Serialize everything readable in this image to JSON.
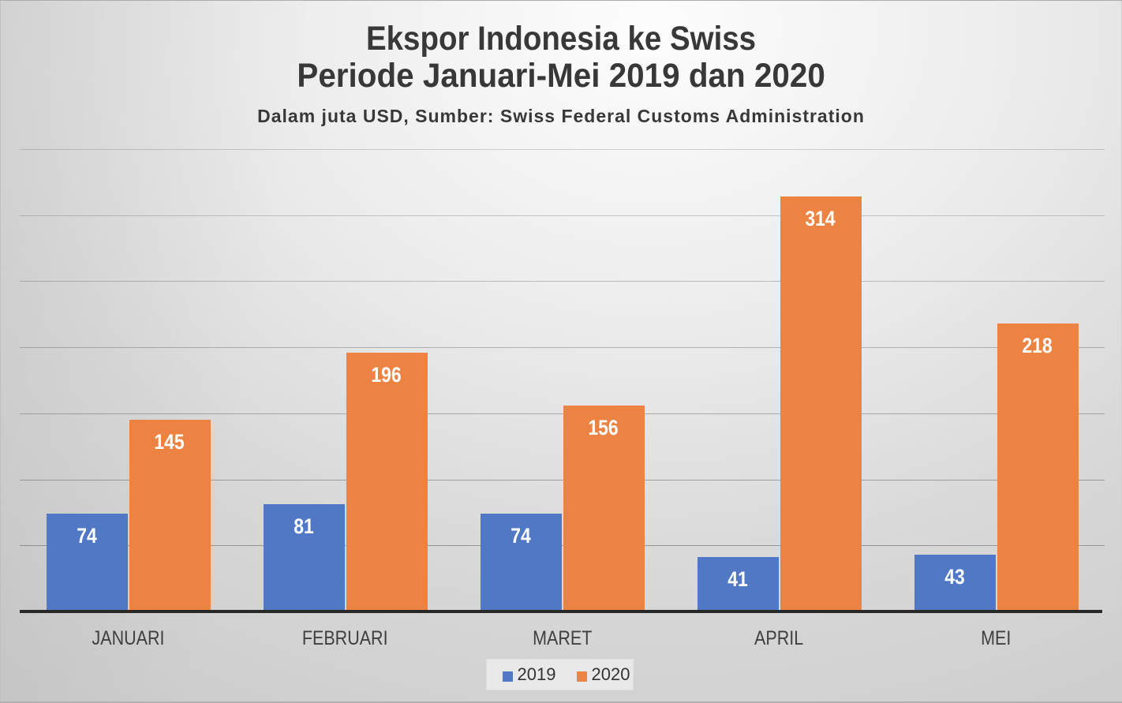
{
  "title": {
    "line1": "Ekspor Indonesia ke Swiss",
    "line2": "Periode Januari-Mei 2019 dan 2020",
    "subtitle": "Dalam juta USD, Sumber: Swiss Federal Customs Administration"
  },
  "chart_data": {
    "type": "bar",
    "title": "Ekspor Indonesia ke Swiss Periode Januari-Mei 2019 dan 2020",
    "subtitle": "Dalam juta USD, Sumber: Swiss Federal Customs Administration",
    "categories": [
      "JANUARI",
      "FEBRUARI",
      "MARET",
      "APRIL",
      "MEI"
    ],
    "series": [
      {
        "name": "2019",
        "color": "#5078C5",
        "values": [
          74,
          81,
          74,
          41,
          43
        ]
      },
      {
        "name": "2020",
        "color": "#EC8342",
        "values": [
          145,
          196,
          156,
          314,
          218
        ]
      }
    ],
    "ylim": [
      0,
      350
    ],
    "gridline_step": 50,
    "grid": true,
    "legend_position": "bottom",
    "xlabel": "",
    "ylabel": ""
  },
  "colors": {
    "axis_line": "#282828",
    "gridline": "rgba(100,100,100,0.42)",
    "category_text": "#404040",
    "value_text": "#ffffff",
    "title_text": "#383838",
    "legend_bg": "#e8e8e8"
  }
}
